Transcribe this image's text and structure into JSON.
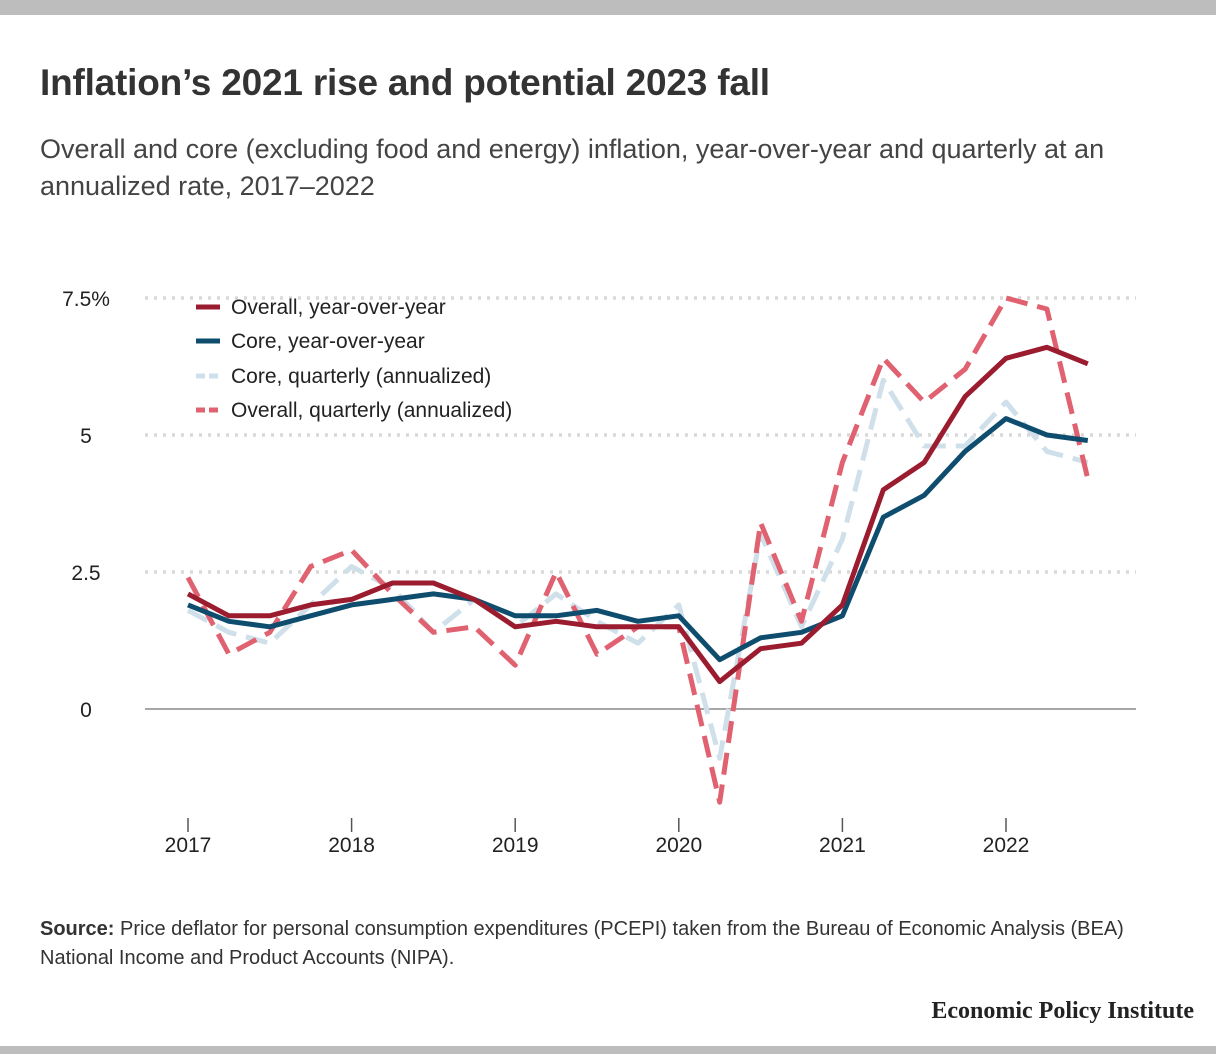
{
  "title": "Inflation’s 2021 rise and potential 2023 fall",
  "subtitle": "Overall and core (excluding food and energy) inflation, year-over-year and quarterly at an annualized rate, 2017–2022",
  "source_label": "Source:",
  "source_text": "Price deflator for personal consumption expenditures (PCEPI) taken from the Bureau of Economic Analysis (BEA) National Income and Product Accounts (NIPA).",
  "brand": "Economic Policy Institute",
  "chart_data": {
    "type": "line",
    "x": [
      "2017Q1",
      "2017Q2",
      "2017Q3",
      "2017Q4",
      "2018Q1",
      "2018Q2",
      "2018Q3",
      "2018Q4",
      "2019Q1",
      "2019Q2",
      "2019Q3",
      "2019Q4",
      "2020Q1",
      "2020Q2",
      "2020Q3",
      "2020Q4",
      "2021Q1",
      "2021Q2",
      "2021Q3",
      "2021Q4",
      "2022Q1",
      "2022Q2",
      "2022Q3"
    ],
    "x_ticks": [
      "2017",
      "2018",
      "2019",
      "2020",
      "2021",
      "2022"
    ],
    "y_ticks": [
      "7.5%",
      "5",
      "2.5",
      "0"
    ],
    "y_tick_values": [
      7.5,
      5,
      2.5,
      0
    ],
    "ylim": [
      -2,
      8
    ],
    "legend_position": "top-left",
    "grid": true,
    "series": [
      {
        "name": "Overall, year-over-year",
        "color": "#9a1c2e",
        "style": "solid",
        "values": [
          2.1,
          1.7,
          1.7,
          1.9,
          2.0,
          2.3,
          2.3,
          2.0,
          1.5,
          1.6,
          1.5,
          1.5,
          1.5,
          0.5,
          1.1,
          1.2,
          1.9,
          4.0,
          4.5,
          5.7,
          6.4,
          6.6,
          6.3
        ]
      },
      {
        "name": "Core, year-over-year",
        "color": "#0e4d6e",
        "style": "solid",
        "values": [
          1.9,
          1.6,
          1.5,
          1.7,
          1.9,
          2.0,
          2.1,
          2.0,
          1.7,
          1.7,
          1.8,
          1.6,
          1.7,
          0.9,
          1.3,
          1.4,
          1.7,
          3.5,
          3.9,
          4.7,
          5.3,
          5.0,
          4.9
        ]
      },
      {
        "name": "Core, quarterly (annualized)",
        "color": "#cfe0ea",
        "style": "dashed",
        "values": [
          1.8,
          1.4,
          1.2,
          1.9,
          2.6,
          2.2,
          1.4,
          2.0,
          1.5,
          2.1,
          1.6,
          1.2,
          1.9,
          -0.9,
          3.2,
          1.5,
          3.1,
          6.0,
          4.8,
          4.8,
          5.6,
          4.7,
          4.5
        ]
      },
      {
        "name": "Overall, quarterly (annualized)",
        "color": "#e0616f",
        "style": "dashed",
        "values": [
          2.4,
          1.0,
          1.4,
          2.6,
          2.9,
          2.1,
          1.4,
          1.5,
          0.8,
          2.5,
          1.0,
          1.5,
          1.5,
          -1.7,
          3.4,
          1.6,
          4.5,
          6.4,
          5.6,
          6.2,
          7.5,
          7.3,
          4.2
        ]
      }
    ]
  }
}
